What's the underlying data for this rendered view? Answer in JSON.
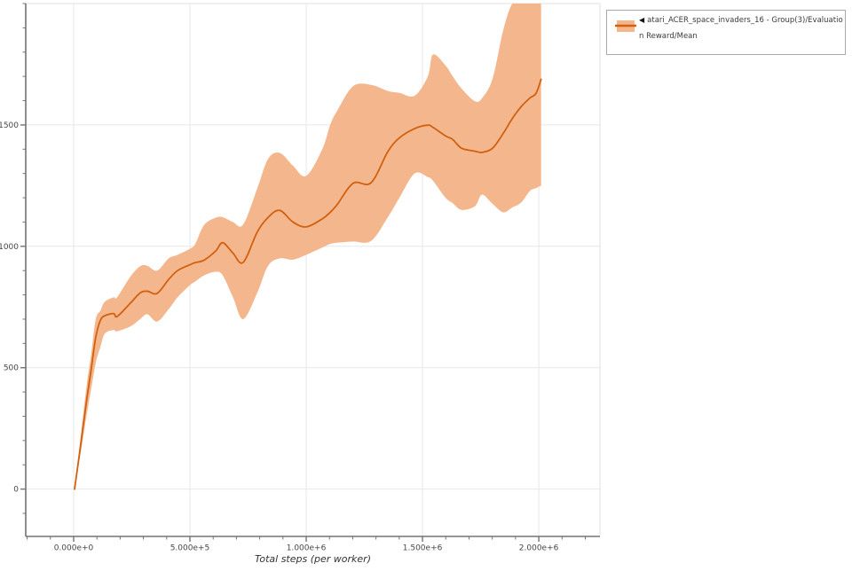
{
  "colors": {
    "line": "#d2600e",
    "band": "#f4b78d",
    "grid": "#e7e7e7",
    "plot_border_light": "#e0e0e0",
    "spine": "#737373",
    "tick_label": "#454545",
    "axis_title": "#333333",
    "legend_border": "#a9a9a9",
    "legend_text": "#3a3a3a"
  },
  "legend": {
    "collapse_icon": "◀",
    "series_label": "atari_ACER_space_invaders_16 - Group(3)/Evaluation Reward/Mean",
    "line1_as_rendered": "◀ atari_ACER_space_invaders_16 - Group(3)/Evaluati",
    "line2_as_rendered": "on Reward/Mean"
  },
  "chart_data": {
    "type": "line",
    "title": "",
    "xlabel": "Total steps (per worker)",
    "ylabel": "",
    "grid": true,
    "legend_position": "top-right",
    "x_range": [
      -206000,
      2263000
    ],
    "y_range": [
      -195,
      2000
    ],
    "x_ticks": {
      "values": [
        0,
        500000,
        1000000,
        1500000,
        2000000
      ],
      "labels": [
        "0.000e+0",
        "5.000e+5",
        "1.000e+6",
        "1.500e+6",
        "2.000e+6"
      ],
      "minor_step": 100000
    },
    "y_ticks": {
      "values": [
        0,
        500,
        1000,
        1500
      ],
      "labels": [
        "0",
        "500",
        "1000",
        "1500"
      ],
      "minor_step": 100
    },
    "series": [
      {
        "name": "atari_ACER_space_invaders_16 - Group(3)/Evaluation Reward/Mean",
        "color": "#d2600e",
        "band_color": "#f4b78d",
        "steps": [
          4000,
          30000,
          55000,
          75000,
          95000,
          115000,
          134000,
          172000,
          187000,
          244000,
          286000,
          317000,
          359000,
          408000,
          447000,
          500000,
          523000,
          561000,
          611000,
          641000,
          685000,
          729000,
          790000,
          836000,
          886000,
          943000,
          1000000,
          1069000,
          1103000,
          1134000,
          1202000,
          1279000,
          1351000,
          1401000,
          1466000,
          1523000,
          1545000,
          1599000,
          1630000,
          1668000,
          1725000,
          1756000,
          1801000,
          1847000,
          1886000,
          1924000,
          1962000,
          1988000,
          2010000
        ],
        "mean": [
          0,
          180,
          360,
          490,
          625,
          695,
          714,
          723,
          711,
          766,
          808,
          815,
          806,
          863,
          900,
          924,
          933,
          943,
          981,
          1015,
          972,
          934,
          1060,
          1119,
          1148,
          1100,
          1080,
          1113,
          1140,
          1173,
          1260,
          1262,
          1390,
          1447,
          1485,
          1499,
          1490,
          1455,
          1440,
          1404,
          1392,
          1387,
          1404,
          1465,
          1526,
          1575,
          1611,
          1630,
          1688
        ],
        "lo": [
          0,
          148,
          300,
          410,
          520,
          585,
          640,
          655,
          650,
          670,
          700,
          720,
          690,
          740,
          790,
          840,
          855,
          880,
          895,
          880,
          790,
          700,
          810,
          920,
          950,
          945,
          965,
          995,
          1010,
          1015,
          1020,
          1022,
          1120,
          1200,
          1300,
          1285,
          1270,
          1200,
          1178,
          1150,
          1165,
          1213,
          1175,
          1140,
          1160,
          1180,
          1228,
          1240,
          1250
        ],
        "hi": [
          0,
          215,
          420,
          555,
          700,
          735,
          772,
          790,
          790,
          875,
          918,
          920,
          900,
          950,
          965,
          990,
          1010,
          1088,
          1118,
          1120,
          1100,
          1090,
          1240,
          1360,
          1385,
          1332,
          1290,
          1400,
          1500,
          1560,
          1660,
          1665,
          1640,
          1632,
          1620,
          1700,
          1790,
          1745,
          1700,
          1650,
          1598,
          1610,
          1690,
          1890,
          2000,
          2005,
          2005,
          2005,
          2005
        ]
      }
    ]
  }
}
